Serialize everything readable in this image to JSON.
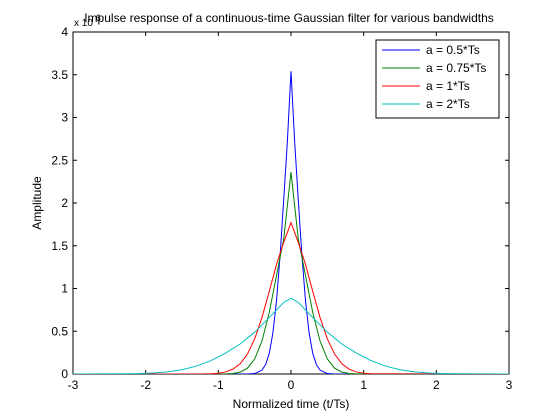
{
  "chart_data": {
    "type": "line",
    "title": "Impulse response of a continuous-time Gaussian filter for various bandwidths",
    "xlabel": "Normalized time (t/Ts)",
    "ylabel": "Amplitude",
    "xlim": [
      -3,
      3
    ],
    "ylim": [
      0,
      4
    ],
    "y_exponent_label": "x 10",
    "y_exponent_power": "6",
    "x_ticks": [
      -3,
      -2,
      -1,
      0,
      1,
      2,
      3
    ],
    "y_ticks": [
      0,
      0.5,
      1,
      1.5,
      2,
      2.5,
      3,
      3.5,
      4
    ],
    "x_tick_labels": [
      "-3",
      "-2",
      "-1",
      "0",
      "1",
      "2",
      "3"
    ],
    "y_tick_labels": [
      "0",
      "0.5",
      "1",
      "1.5",
      "2",
      "2.5",
      "3",
      "3.5",
      "4"
    ],
    "grid": false,
    "legend_position": "top-right",
    "series": [
      {
        "name": "a = 0.5*Ts",
        "color": "#0000ff",
        "x": [
          -0.6,
          -0.5,
          -0.4,
          -0.35,
          -0.3,
          -0.25,
          -0.2,
          -0.15,
          -0.1,
          -0.05,
          0,
          0.05,
          0.1,
          0.15,
          0.2,
          0.25,
          0.3,
          0.35,
          0.4,
          0.5,
          0.6
        ],
        "y": [
          0.0004,
          0.0055,
          0.045,
          0.109,
          0.239,
          0.475,
          0.853,
          1.387,
          2.04,
          2.72,
          3.54,
          2.72,
          2.04,
          1.387,
          0.853,
          0.475,
          0.239,
          0.109,
          0.045,
          0.0055,
          0.0004
        ]
      },
      {
        "name": "a = 0.75*Ts",
        "color": "#008000",
        "x": [
          -0.9,
          -0.8,
          -0.7,
          -0.6,
          -0.5,
          -0.4,
          -0.3,
          -0.2,
          -0.1,
          0,
          0.1,
          0.2,
          0.3,
          0.4,
          0.5,
          0.6,
          0.7,
          0.8,
          0.9
        ],
        "y": [
          0.0015,
          0.0062,
          0.022,
          0.068,
          0.175,
          0.383,
          0.716,
          1.15,
          1.58,
          2.36,
          1.58,
          1.15,
          0.716,
          0.383,
          0.175,
          0.068,
          0.022,
          0.0062,
          0.0015
        ]
      },
      {
        "name": "a = 1*Ts",
        "color": "#ff0000",
        "x": [
          -1.2,
          -1.1,
          -1.0,
          -0.9,
          -0.8,
          -0.7,
          -0.6,
          -0.5,
          -0.4,
          -0.3,
          -0.2,
          -0.1,
          0,
          0.1,
          0.2,
          0.3,
          0.4,
          0.5,
          0.6,
          0.7,
          0.8,
          0.9,
          1.0,
          1.1,
          1.2
        ],
        "y": [
          0.0011,
          0.0034,
          0.0095,
          0.024,
          0.056,
          0.12,
          0.232,
          0.41,
          0.66,
          0.963,
          1.28,
          1.54,
          1.77,
          1.54,
          1.28,
          0.963,
          0.66,
          0.41,
          0.232,
          0.12,
          0.056,
          0.024,
          0.0095,
          0.0034,
          0.0011
        ]
      },
      {
        "name": "a = 2*Ts",
        "color": "#00bfbf",
        "x": [
          -2.3,
          -2.1,
          -1.9,
          -1.7,
          -1.5,
          -1.3,
          -1.1,
          -0.9,
          -0.7,
          -0.5,
          -0.3,
          -0.1,
          0,
          0.1,
          0.3,
          0.5,
          0.7,
          0.9,
          1.1,
          1.3,
          1.5,
          1.7,
          1.9,
          2.1,
          2.3
        ],
        "y": [
          0.0018,
          0.0048,
          0.0115,
          0.025,
          0.05,
          0.093,
          0.157,
          0.245,
          0.351,
          0.489,
          0.66,
          0.838,
          0.886,
          0.838,
          0.66,
          0.489,
          0.351,
          0.245,
          0.157,
          0.093,
          0.05,
          0.025,
          0.0115,
          0.0048,
          0.0018
        ]
      }
    ]
  }
}
